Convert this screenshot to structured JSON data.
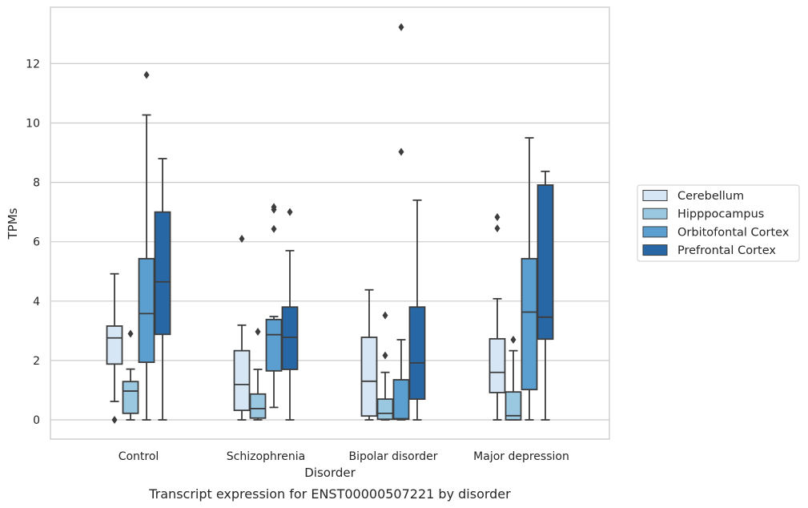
{
  "chart_data": {
    "type": "box",
    "caption": "Transcript expression for ENST00000507221 by disorder",
    "xlabel": "Disorder",
    "ylabel": "TPMs",
    "ylim": [
      -0.65,
      13.9
    ],
    "yticks": [
      0,
      2,
      4,
      6,
      8,
      10,
      12
    ],
    "grid": "horizontal",
    "legend_position": "right",
    "categories": [
      "Control",
      "Schizophrenia",
      "Bipolar disorder",
      "Major depression"
    ],
    "series": [
      {
        "name": "Cerebellum",
        "color": "#d6e6f4",
        "boxes": [
          {
            "whislo": 0.62,
            "q1": 1.88,
            "med": 2.76,
            "q3": 3.16,
            "whishi": 4.92,
            "fliers": [
              0.0
            ]
          },
          {
            "whislo": 0.0,
            "q1": 0.32,
            "med": 1.19,
            "q3": 2.33,
            "whishi": 3.19,
            "fliers": [
              6.1
            ]
          },
          {
            "whislo": 0.0,
            "q1": 0.13,
            "med": 1.3,
            "q3": 2.78,
            "whishi": 4.38,
            "fliers": []
          },
          {
            "whislo": 0.0,
            "q1": 0.92,
            "med": 1.6,
            "q3": 2.73,
            "whishi": 4.08,
            "fliers": [
              6.45,
              6.83
            ]
          }
        ]
      },
      {
        "name": "Hipppocampus",
        "color": "#9ac8e0",
        "boxes": [
          {
            "whislo": 0.0,
            "q1": 0.22,
            "med": 0.97,
            "q3": 1.29,
            "whishi": 1.71,
            "fliers": [
              2.9
            ]
          },
          {
            "whislo": 0.0,
            "q1": 0.06,
            "med": 0.38,
            "q3": 0.87,
            "whishi": 1.7,
            "fliers": [
              2.97
            ]
          },
          {
            "whislo": 0.0,
            "q1": 0.02,
            "med": 0.22,
            "q3": 0.7,
            "whishi": 1.6,
            "fliers": [
              2.17,
              3.52
            ]
          },
          {
            "whislo": 0.0,
            "q1": 0.0,
            "med": 0.14,
            "q3": 0.94,
            "whishi": 2.33,
            "fliers": [
              2.7
            ]
          }
        ]
      },
      {
        "name": "Orbitofontal Cortex",
        "color": "#5a9fcf",
        "boxes": [
          {
            "whislo": 0.0,
            "q1": 1.94,
            "med": 3.58,
            "q3": 5.43,
            "whishi": 10.27,
            "fliers": [
              11.62
            ]
          },
          {
            "whislo": 0.42,
            "q1": 1.65,
            "med": 2.87,
            "q3": 3.38,
            "whishi": 3.48,
            "fliers": [
              6.43,
              7.08,
              7.17
            ]
          },
          {
            "whislo": 0.0,
            "q1": 0.02,
            "med": 0.04,
            "q3": 1.35,
            "whishi": 2.7,
            "fliers": [
              9.03,
              13.23
            ]
          },
          {
            "whislo": 0.0,
            "q1": 1.02,
            "med": 3.63,
            "q3": 5.43,
            "whishi": 9.5,
            "fliers": []
          }
        ]
      },
      {
        "name": "Prefrontal Cortex",
        "color": "#2867a6",
        "boxes": [
          {
            "whislo": 0.0,
            "q1": 2.88,
            "med": 4.65,
            "q3": 7.0,
            "whishi": 8.8,
            "fliers": []
          },
          {
            "whislo": 0.0,
            "q1": 1.7,
            "med": 2.78,
            "q3": 3.8,
            "whishi": 5.7,
            "fliers": [
              7.0
            ]
          },
          {
            "whislo": 0.0,
            "q1": 0.7,
            "med": 1.92,
            "q3": 3.8,
            "whishi": 7.4,
            "fliers": []
          },
          {
            "whislo": 0.0,
            "q1": 2.72,
            "med": 3.46,
            "q3": 7.91,
            "whishi": 8.37,
            "fliers": []
          }
        ]
      }
    ]
  }
}
